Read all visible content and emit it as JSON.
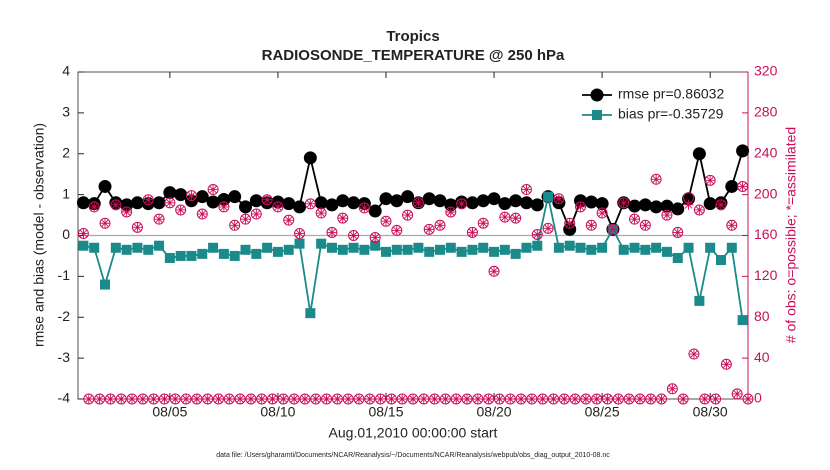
{
  "chart_data": {
    "type": "line",
    "title": [
      "Tropics",
      "RADIOSONDE_TEMPERATURE @ 250 hPa"
    ],
    "xlabel": "Aug.01,2010 00:00:00 start",
    "ylabel": "rmse and bias (model - observation)",
    "y2label": "# of obs: o=possible; *=assimilated",
    "footnote": "data file: /Users/gharamti/Documents/NCAR/Reanalysis/~/Documents/NCAR/Reanalysis/webpub/obs_diag_output_2010-08.nc",
    "xlim": [
      -0.25,
      30.75
    ],
    "xticks": [
      {
        "value": 4,
        "label": "08/05"
      },
      {
        "value": 9,
        "label": "08/10"
      },
      {
        "value": 14,
        "label": "08/15"
      },
      {
        "value": 19,
        "label": "08/20"
      },
      {
        "value": 24,
        "label": "08/25"
      },
      {
        "value": 29,
        "label": "08/30"
      }
    ],
    "ylim": [
      -4,
      4
    ],
    "yticks": [
      -4,
      -3,
      -2,
      -1,
      0,
      1,
      2,
      3,
      4
    ],
    "y2lim": [
      0,
      320
    ],
    "y2ticks": [
      0,
      40,
      80,
      120,
      160,
      200,
      240,
      280,
      320
    ],
    "y2color": "#c8105a",
    "legend": "upper right",
    "series": [
      {
        "name": "rmse pr=0.86032",
        "color": "#000000",
        "marker": "circle",
        "line": true,
        "x": [
          0,
          0.5,
          1,
          1.5,
          2,
          2.5,
          3,
          3.5,
          4,
          4.5,
          5,
          5.5,
          6,
          6.5,
          7,
          7.5,
          8,
          8.5,
          9,
          9.5,
          10,
          10.5,
          11,
          11.5,
          12,
          12.5,
          13,
          13.5,
          14,
          14.5,
          15,
          15.5,
          16,
          16.5,
          17,
          17.5,
          18,
          18.5,
          19,
          19.5,
          20,
          20.5,
          21,
          21.5,
          22,
          22.5,
          23,
          23.5,
          24,
          24.5,
          25,
          25.5,
          26,
          26.5,
          27,
          27.5,
          28,
          28.5,
          29,
          29.5,
          30,
          30.5
        ],
        "values": [
          0.8,
          0.78,
          1.2,
          0.8,
          0.75,
          0.8,
          0.78,
          0.8,
          1.05,
          1.0,
          0.85,
          0.95,
          0.82,
          0.88,
          0.95,
          0.7,
          0.85,
          0.8,
          0.82,
          0.78,
          0.7,
          1.9,
          0.8,
          0.75,
          0.85,
          0.8,
          0.78,
          0.6,
          0.9,
          0.85,
          0.95,
          0.8,
          0.9,
          0.85,
          0.75,
          0.82,
          0.8,
          0.85,
          0.9,
          0.78,
          0.85,
          0.8,
          0.75,
          0.95,
          0.8,
          0.15,
          0.85,
          0.82,
          0.78,
          0.15,
          0.8,
          0.72,
          0.75,
          0.7,
          0.72,
          0.65,
          0.9,
          2.0,
          0.78,
          0.8,
          1.2,
          2.07
        ]
      },
      {
        "name": "bias pr=-0.35729",
        "color": "#1b8a8a",
        "marker": "square",
        "line": true,
        "x": [
          0,
          0.5,
          1,
          1.5,
          2,
          2.5,
          3,
          3.5,
          4,
          4.5,
          5,
          5.5,
          6,
          6.5,
          7,
          7.5,
          8,
          8.5,
          9,
          9.5,
          10,
          10.5,
          11,
          11.5,
          12,
          12.5,
          13,
          13.5,
          14,
          14.5,
          15,
          15.5,
          16,
          16.5,
          17,
          17.5,
          18,
          18.5,
          19,
          19.5,
          20,
          20.5,
          21,
          21.5,
          22,
          22.5,
          23,
          23.5,
          24,
          24.5,
          25,
          25.5,
          26,
          26.5,
          27,
          27.5,
          28,
          28.5,
          29,
          29.5,
          30,
          30.5
        ],
        "values": [
          -0.25,
          -0.3,
          -1.2,
          -0.3,
          -0.35,
          -0.3,
          -0.35,
          -0.25,
          -0.55,
          -0.5,
          -0.5,
          -0.45,
          -0.3,
          -0.45,
          -0.5,
          -0.35,
          -0.45,
          -0.3,
          -0.4,
          -0.35,
          -0.2,
          -1.9,
          -0.2,
          -0.3,
          -0.35,
          -0.3,
          -0.35,
          -0.25,
          -0.4,
          -0.35,
          -0.35,
          -0.3,
          -0.4,
          -0.35,
          -0.3,
          -0.4,
          -0.35,
          -0.3,
          -0.4,
          -0.35,
          -0.45,
          -0.3,
          -0.25,
          0.95,
          -0.3,
          -0.25,
          -0.3,
          -0.35,
          -0.3,
          0.15,
          -0.35,
          -0.3,
          -0.35,
          -0.3,
          -0.4,
          -0.55,
          -0.3,
          -1.6,
          -0.3,
          -0.6,
          -0.3,
          -2.07
        ]
      },
      {
        "color": "#c8105a",
        "marker": "o",
        "line": false,
        "axis": "y2",
        "x": [
          0,
          0.25,
          0.5,
          0.75,
          1,
          1.25,
          1.5,
          1.75,
          2,
          2.25,
          2.5,
          2.75,
          3,
          3.25,
          3.5,
          3.75,
          4,
          4.25,
          4.5,
          4.75,
          5,
          5.25,
          5.5,
          5.75,
          6,
          6.25,
          6.5,
          6.75,
          7,
          7.25,
          7.5,
          7.75,
          8,
          8.25,
          8.5,
          8.75,
          9,
          9.25,
          9.5,
          9.75,
          10,
          10.25,
          10.5,
          10.75,
          11,
          11.25,
          11.5,
          11.75,
          12,
          12.25,
          12.5,
          12.75,
          13,
          13.25,
          13.5,
          13.75,
          14,
          14.25,
          14.5,
          14.75,
          15,
          15.25,
          15.5,
          15.75,
          16,
          16.25,
          16.5,
          16.75,
          17,
          17.25,
          17.5,
          17.75,
          18,
          18.25,
          18.5,
          18.75,
          19,
          19.25,
          19.5,
          19.75,
          20,
          20.25,
          20.5,
          20.75,
          21,
          21.25,
          21.5,
          21.75,
          22,
          22.25,
          22.5,
          22.75,
          23,
          23.25,
          23.5,
          23.75,
          24,
          24.25,
          24.5,
          24.75,
          25,
          25.25,
          25.5,
          25.75,
          26,
          26.25,
          26.5,
          26.75,
          27,
          27.25,
          27.5,
          27.75,
          28,
          28.25,
          28.5,
          28.75,
          29,
          29.25,
          29.5,
          29.75,
          30,
          30.25,
          30.5,
          30.75
        ],
        "values": [
          162,
          0,
          188,
          0,
          172,
          0,
          190,
          0,
          183,
          0,
          168,
          0,
          195,
          0,
          176,
          0,
          192,
          0,
          185,
          0,
          199,
          0,
          181,
          0,
          205,
          0,
          188,
          0,
          170,
          0,
          176,
          0,
          181,
          0,
          195,
          0,
          188,
          0,
          175,
          0,
          162,
          0,
          191,
          0,
          182,
          0,
          163,
          0,
          177,
          0,
          160,
          0,
          187,
          0,
          158,
          0,
          174,
          0,
          165,
          0,
          180,
          0,
          192,
          0,
          166,
          0,
          170,
          0,
          183,
          0,
          191,
          0,
          163,
          0,
          172,
          0,
          125,
          0,
          178,
          0,
          177,
          0,
          205,
          0,
          161,
          0,
          167,
          0,
          196,
          0,
          172,
          0,
          188,
          0,
          170,
          0,
          182,
          0,
          166,
          0,
          192,
          0,
          176,
          0,
          170,
          0,
          215,
          0,
          180,
          10,
          163,
          0,
          197,
          44,
          185,
          0,
          214,
          0,
          190,
          34,
          170,
          5,
          208,
          0
        ]
      },
      {
        "color": "#c8105a",
        "marker": "asterisk",
        "line": false,
        "axis": "y2",
        "x": [
          0,
          0.25,
          0.5,
          0.75,
          1,
          1.25,
          1.5,
          1.75,
          2,
          2.25,
          2.5,
          2.75,
          3,
          3.25,
          3.5,
          3.75,
          4,
          4.25,
          4.5,
          4.75,
          5,
          5.25,
          5.5,
          5.75,
          6,
          6.25,
          6.5,
          6.75,
          7,
          7.25,
          7.5,
          7.75,
          8,
          8.25,
          8.5,
          8.75,
          9,
          9.25,
          9.5,
          9.75,
          10,
          10.25,
          10.5,
          10.75,
          11,
          11.25,
          11.5,
          11.75,
          12,
          12.25,
          12.5,
          12.75,
          13,
          13.25,
          13.5,
          13.75,
          14,
          14.25,
          14.5,
          14.75,
          15,
          15.25,
          15.5,
          15.75,
          16,
          16.25,
          16.5,
          16.75,
          17,
          17.25,
          17.5,
          17.75,
          18,
          18.25,
          18.5,
          18.75,
          19,
          19.25,
          19.5,
          19.75,
          20,
          20.25,
          20.5,
          20.75,
          21,
          21.25,
          21.5,
          21.75,
          22,
          22.25,
          22.5,
          22.75,
          23,
          23.25,
          23.5,
          23.75,
          24,
          24.25,
          24.5,
          24.75,
          25,
          25.25,
          25.5,
          25.75,
          26,
          26.25,
          26.5,
          26.75,
          27,
          27.25,
          27.5,
          27.75,
          28,
          28.25,
          28.5,
          28.75,
          29,
          29.25,
          29.5,
          29.75,
          30,
          30.25,
          30.5,
          30.75
        ],
        "values": [
          162,
          0,
          188,
          0,
          172,
          0,
          190,
          0,
          183,
          0,
          168,
          0,
          195,
          0,
          176,
          0,
          192,
          0,
          185,
          0,
          199,
          0,
          181,
          0,
          205,
          0,
          188,
          0,
          170,
          0,
          176,
          0,
          181,
          0,
          195,
          0,
          188,
          0,
          175,
          0,
          162,
          0,
          191,
          0,
          182,
          0,
          163,
          0,
          177,
          0,
          160,
          0,
          187,
          0,
          158,
          0,
          174,
          0,
          165,
          0,
          180,
          0,
          192,
          0,
          166,
          0,
          170,
          0,
          183,
          0,
          191,
          0,
          163,
          0,
          172,
          0,
          125,
          0,
          178,
          0,
          177,
          0,
          205,
          0,
          161,
          0,
          167,
          0,
          196,
          0,
          172,
          0,
          188,
          0,
          170,
          0,
          182,
          0,
          166,
          0,
          192,
          0,
          176,
          0,
          170,
          0,
          215,
          0,
          180,
          10,
          163,
          0,
          190,
          44,
          185,
          0,
          214,
          0,
          190,
          34,
          170,
          5,
          208,
          0
        ]
      }
    ]
  }
}
